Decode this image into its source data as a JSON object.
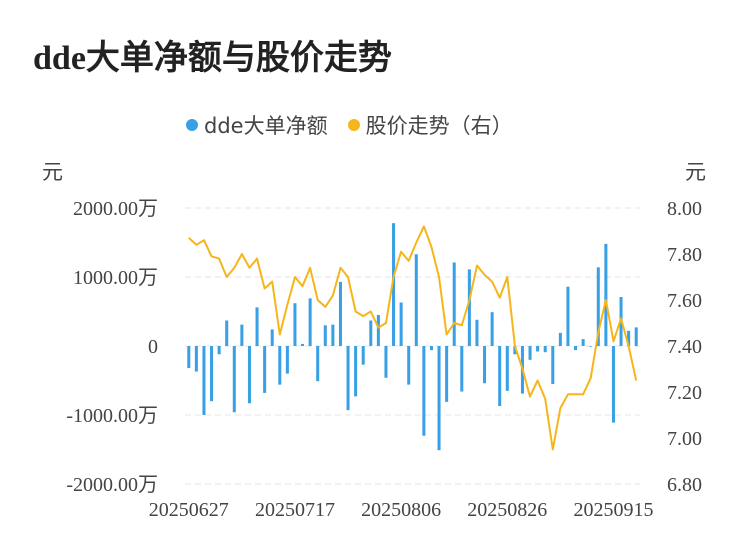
{
  "title": "dde大单净额与股价走势",
  "legend": {
    "bar_label": "dde大单净额",
    "line_label": "股价走势（右）"
  },
  "units": {
    "left": "元",
    "right": "元"
  },
  "colors": {
    "bar": "#3aa0e6",
    "line": "#f5b51b",
    "grid": "#e4e4e4",
    "text": "#444444"
  },
  "chart_data": {
    "type": "bar+line",
    "y_left_ticks": [
      "2000.00万",
      "1000.00万",
      "0",
      "-1000.00万",
      "-2000.00万"
    ],
    "y_left_range": [
      -2000,
      2000
    ],
    "y_right_ticks": [
      "8.00",
      "7.80",
      "7.60",
      "7.40",
      "7.20",
      "7.00",
      "6.80"
    ],
    "y_right_range": [
      6.8,
      8.0
    ],
    "x_tick_labels": [
      "20250627",
      "20250717",
      "20250806",
      "20250826",
      "20250915"
    ],
    "x_tick_index": [
      0,
      14,
      28,
      42,
      56
    ],
    "series": [
      {
        "name": "dde大单净额",
        "kind": "bar",
        "axis": "left",
        "values": [
          -320,
          -370,
          -1000,
          -800,
          -120,
          370,
          -960,
          310,
          -830,
          560,
          -680,
          240,
          -560,
          -400,
          620,
          30,
          690,
          -510,
          300,
          310,
          930,
          -930,
          -730,
          -270,
          370,
          450,
          -460,
          1780,
          630,
          -560,
          1330,
          -1300,
          -60,
          -1510,
          -810,
          1210,
          -660,
          1110,
          380,
          -540,
          490,
          -870,
          -650,
          -120,
          -690,
          -200,
          -80,
          -90,
          -550,
          190,
          860,
          -60,
          100,
          -10,
          1140,
          1480,
          -1110,
          710,
          220,
          270
        ]
      },
      {
        "name": "股价走势（右）",
        "kind": "line",
        "axis": "right",
        "values": [
          7.87,
          7.84,
          7.86,
          7.79,
          7.78,
          7.7,
          7.74,
          7.8,
          7.74,
          7.78,
          7.65,
          7.68,
          7.45,
          7.58,
          7.7,
          7.66,
          7.74,
          7.6,
          7.57,
          7.62,
          7.74,
          7.7,
          7.55,
          7.53,
          7.55,
          7.48,
          7.5,
          7.7,
          7.81,
          7.77,
          7.85,
          7.92,
          7.83,
          7.7,
          7.45,
          7.5,
          7.49,
          7.6,
          7.75,
          7.71,
          7.68,
          7.61,
          7.7,
          7.4,
          7.3,
          7.18,
          7.25,
          7.17,
          6.95,
          7.13,
          7.19,
          7.19,
          7.19,
          7.26,
          7.46,
          7.6,
          7.42,
          7.52,
          7.4,
          7.25
        ]
      }
    ]
  }
}
